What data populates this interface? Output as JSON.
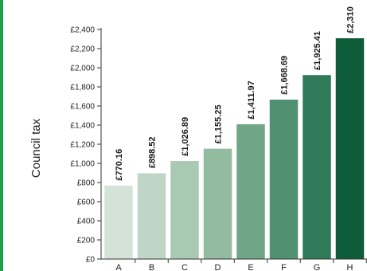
{
  "chart_data": {
    "type": "bar",
    "title": "",
    "xlabel": "",
    "ylabel": "Council tax",
    "categories": [
      "A",
      "B",
      "C",
      "D",
      "E",
      "F",
      "G",
      "H"
    ],
    "values": [
      770.16,
      898.52,
      1026.89,
      1155.25,
      1411.97,
      1668.69,
      1925.41,
      2310.5
    ],
    "value_labels": [
      "£770.16",
      "£898.52",
      "£1,026.89",
      "£1,155.25",
      "£1,411.97",
      "£1,668.69",
      "£1,925.41",
      "£2,310"
    ],
    "y_ticks": [
      0,
      200,
      400,
      600,
      800,
      1000,
      1200,
      1400,
      1600,
      1800,
      2000,
      2200,
      2400
    ],
    "y_tick_labels": [
      "£0",
      "£200",
      "£400",
      "£600",
      "£800",
      "£1,000",
      "£1,200",
      "£1,400",
      "£1,600",
      "£1,800",
      "£2,000",
      "£2,200",
      "£2,400"
    ],
    "ylim": [
      0,
      2400
    ],
    "grid": false,
    "legend": "none",
    "bar_colors": [
      "#d3e3d8",
      "#bfd6c6",
      "#a9c9b3",
      "#93bba0",
      "#6fa685",
      "#4f9170",
      "#2f7a58",
      "#0e5c3a"
    ],
    "frame_color": "#1f9d4a"
  }
}
